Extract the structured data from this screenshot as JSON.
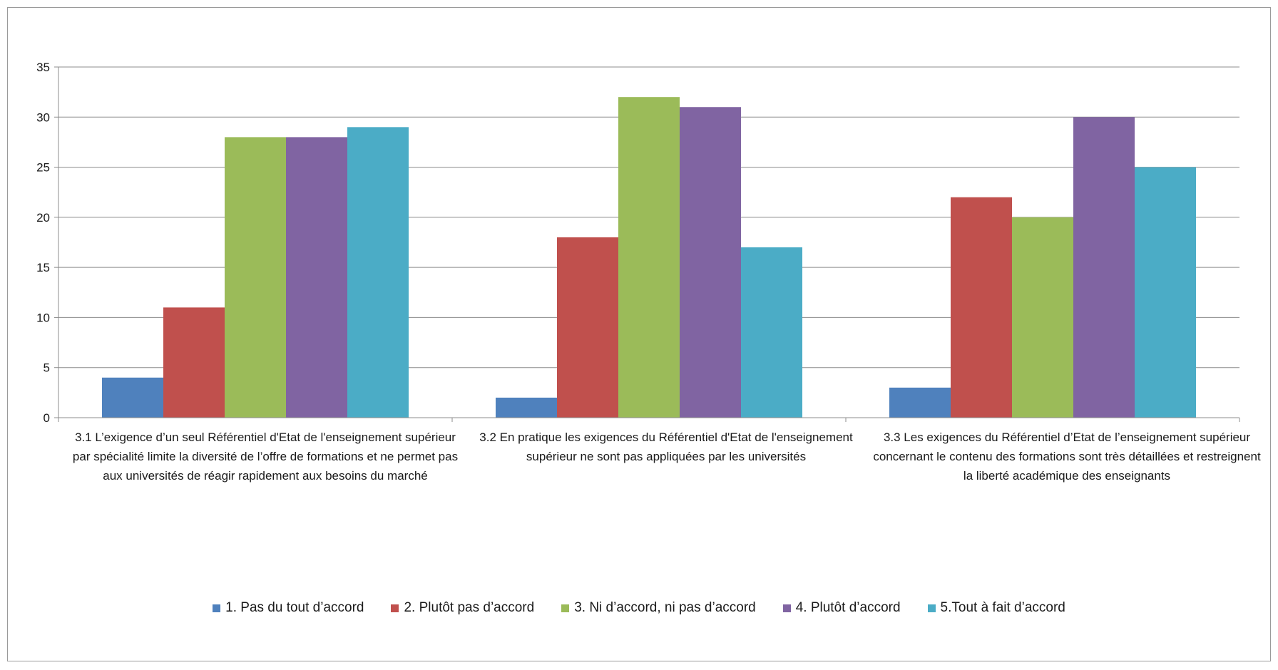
{
  "chart_data": {
    "type": "bar",
    "title": "",
    "xlabel": "",
    "ylabel": "",
    "ylim": [
      0,
      35
    ],
    "yticks": [
      0,
      5,
      10,
      15,
      20,
      25,
      30,
      35
    ],
    "grid": true,
    "legend_position": "bottom",
    "categories": [
      "3.1 L’exigence d’un seul Référentiel d'Etat de l'enseignement supérieur par spécialité limite la diversité de l’offre de formations et ne permet pas aux universités de réagir rapidement aux besoins du marché",
      "3.2 En pratique les exigences du Référentiel d'Etat de l'enseignement supérieur ne sont pas appliquées par les universités",
      "3.3 Les exigences du Référentiel d’Etat de l’enseignement supérieur concernant le contenu des formations sont très détaillées et restreignent la liberté académique des enseignants"
    ],
    "series": [
      {
        "name": "1. Pas du tout d’accord",
        "color": "#4f81bd",
        "values": [
          4,
          2,
          3
        ]
      },
      {
        "name": "2. Plutôt pas d’accord",
        "color": "#c0504d",
        "values": [
          11,
          18,
          22
        ]
      },
      {
        "name": "3. Ni d’accord, ni pas d’accord",
        "color": "#9bbb59",
        "values": [
          28,
          32,
          20
        ]
      },
      {
        "name": "4. Plutôt d’accord",
        "color": "#8064a2",
        "values": [
          28,
          31,
          30
        ]
      },
      {
        "name": "5.Tout à fait d’accord",
        "color": "#4bacc6",
        "values": [
          29,
          17,
          25
        ]
      }
    ]
  }
}
